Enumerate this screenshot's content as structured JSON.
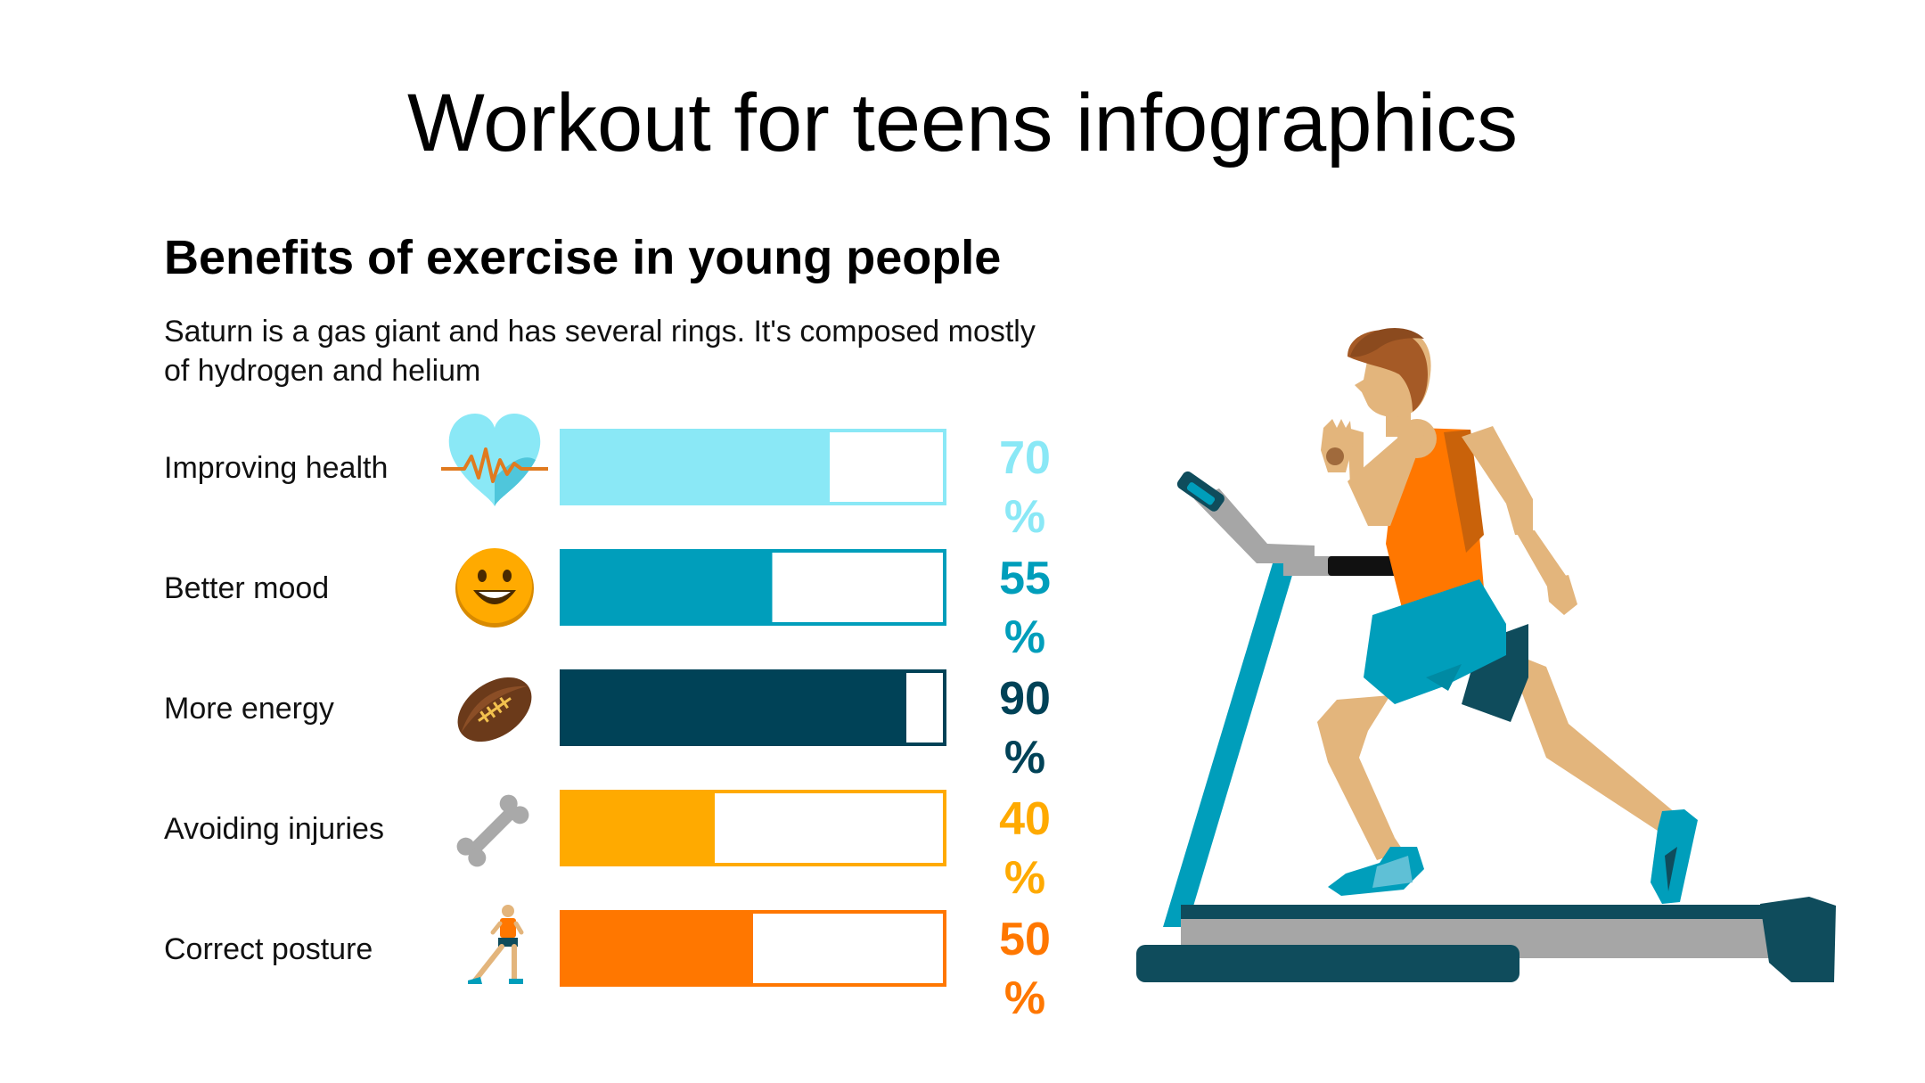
{
  "title": "Workout for teens infographics",
  "subtitle": "Benefits of exercise in young people",
  "description": "Saturn is a gas giant and has several rings. It's composed mostly of hydrogen and helium",
  "chart_data": {
    "type": "bar",
    "orientation": "horizontal",
    "title": "Benefits of exercise in young people",
    "categories": [
      "Improving health",
      "Better mood",
      "More energy",
      "Avoiding injuries",
      "Correct posture"
    ],
    "values": [
      70,
      55,
      90,
      40,
      50
    ],
    "value_labels": [
      [
        "70",
        "%"
      ],
      [
        "55",
        "%"
      ],
      [
        "90",
        "%"
      ],
      [
        "40",
        "%"
      ],
      [
        "50",
        "%"
      ]
    ],
    "xlim": [
      0,
      100
    ],
    "unit": "%",
    "colors": [
      "#8AE8F6",
      "#009EBB",
      "#004257",
      "#FFAA00",
      "#FF7700"
    ],
    "icons": [
      "heart-pulse-icon",
      "smiley-icon",
      "football-icon",
      "bone-icon",
      "posture-figure-icon"
    ],
    "legend": false,
    "grid": false
  },
  "illustration": "runner-on-treadmill"
}
